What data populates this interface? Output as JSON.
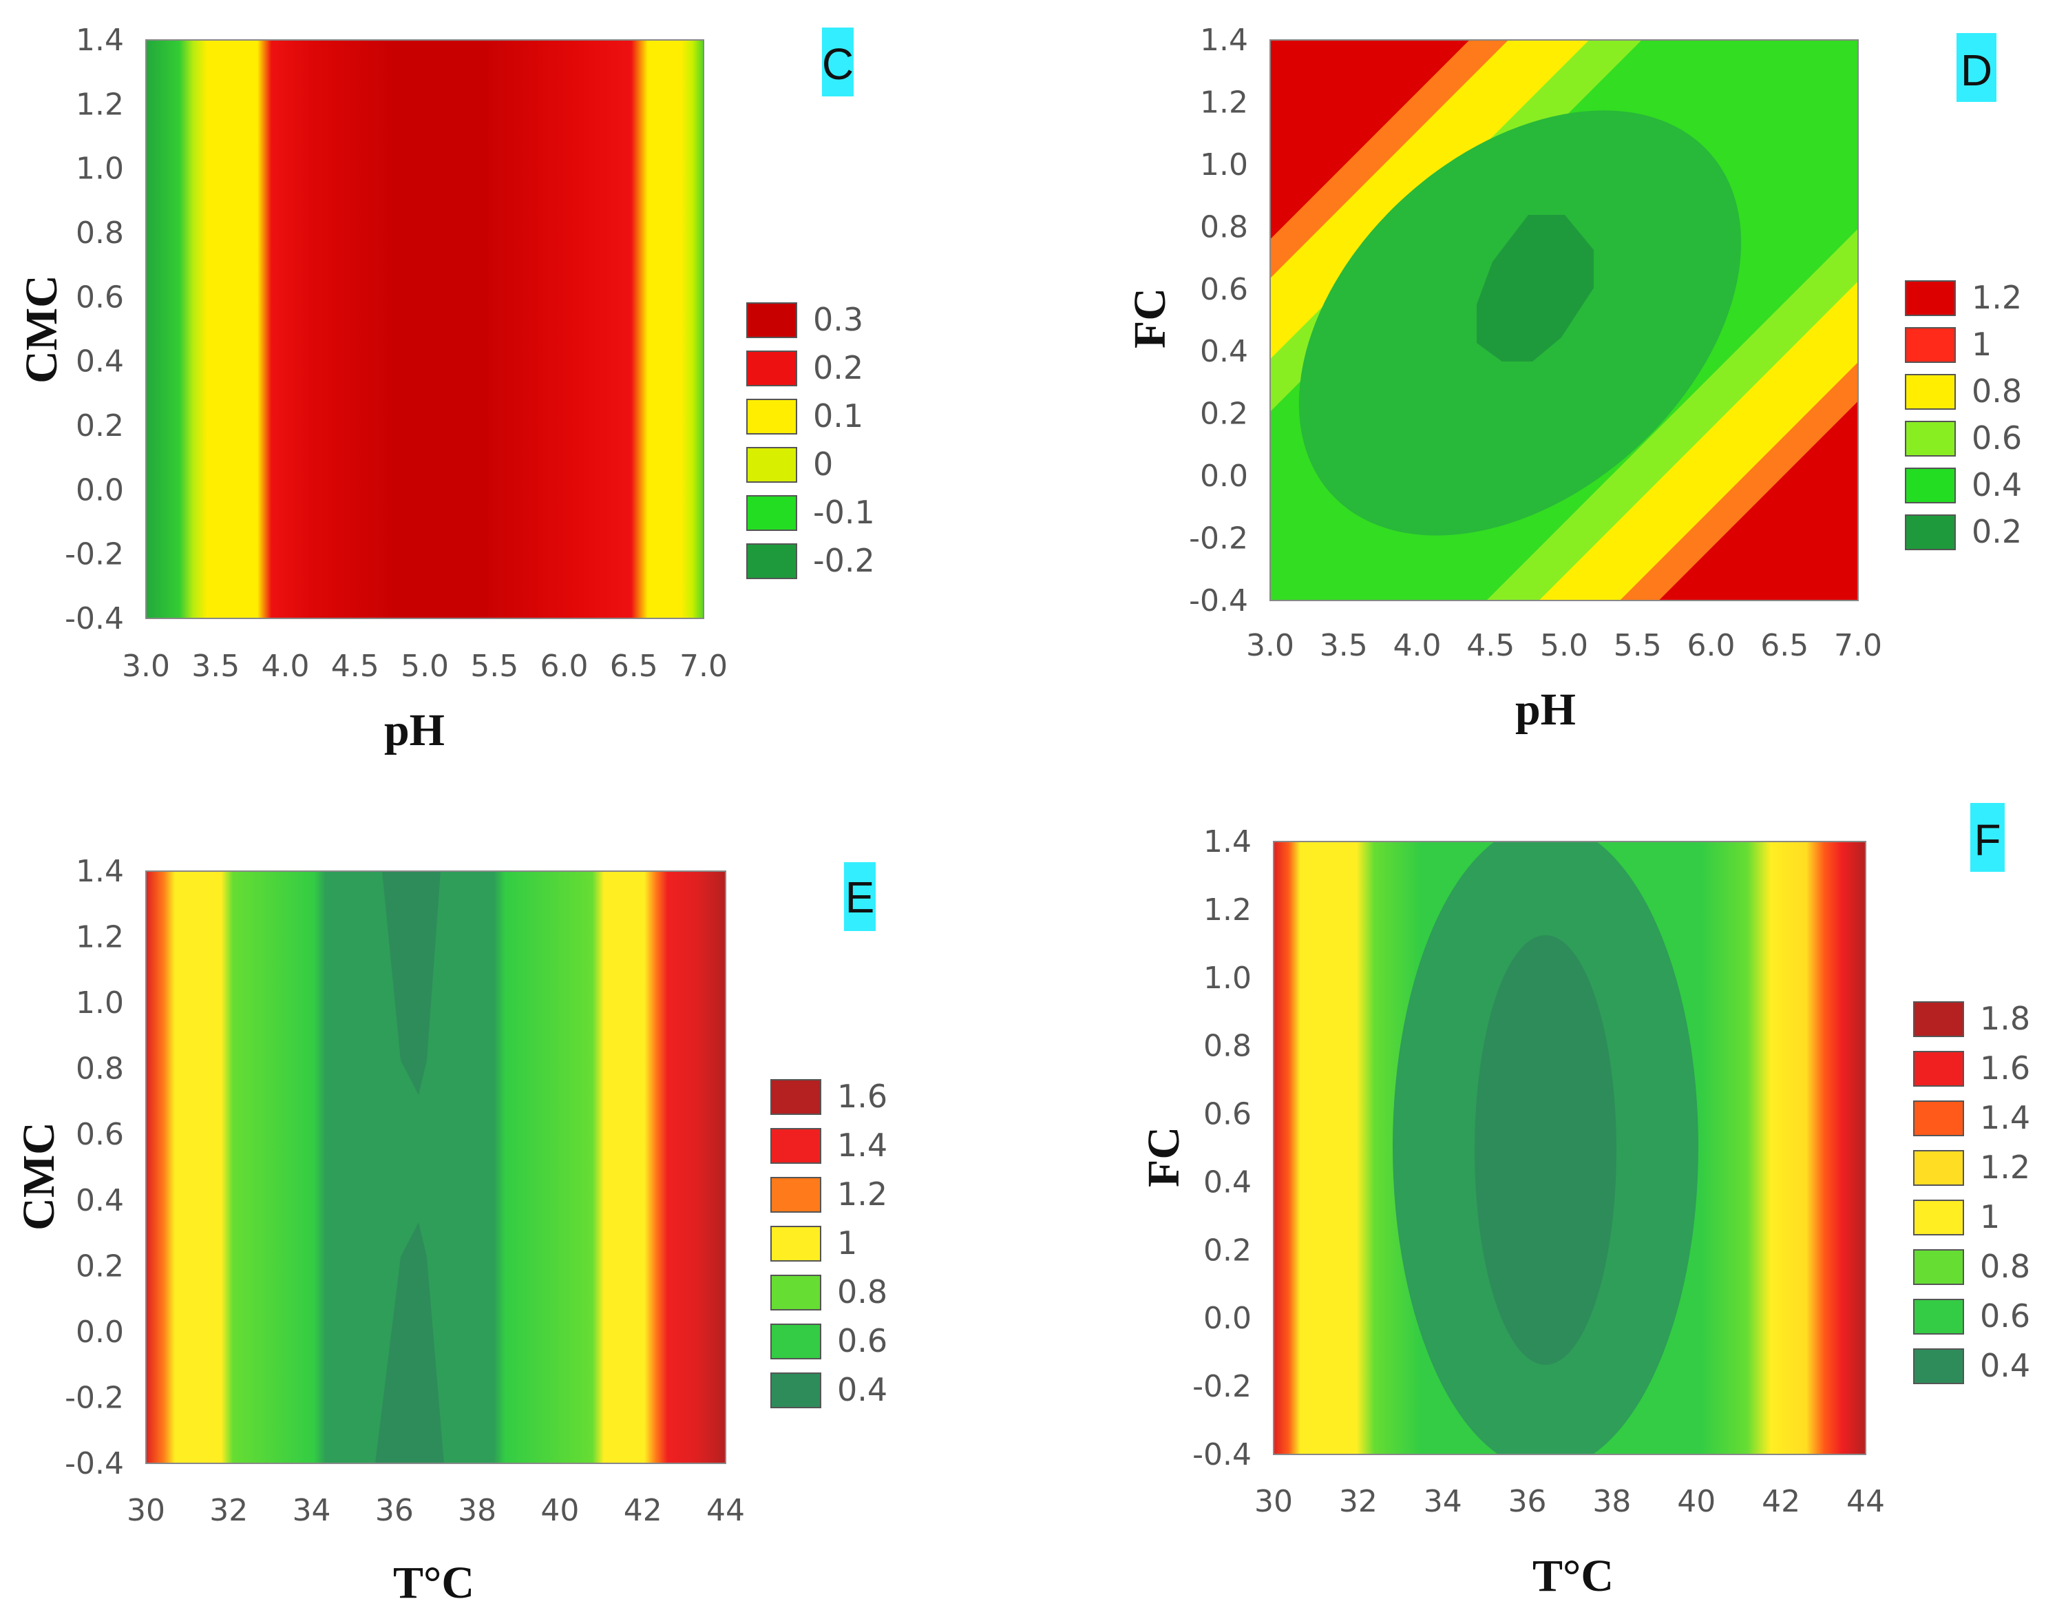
{
  "chart_data": [
    {
      "type": "heatmap",
      "panel_label": "C",
      "xlabel": "pH",
      "ylabel": "CMC",
      "xlim": [
        3.0,
        7.0
      ],
      "ylim": [
        -0.4,
        1.4
      ],
      "x_ticks": [
        "3.0",
        "3.5",
        "4.0",
        "4.5",
        "5.0",
        "5.5",
        "6.0",
        "6.5",
        "7.0"
      ],
      "y_ticks": [
        "1.4",
        "1.2",
        "1.0",
        "0.8",
        "0.6",
        "0.4",
        "0.2",
        "0.0",
        "-0.2",
        "-0.4"
      ],
      "legend": [
        {
          "label": "0.3",
          "color": "#c80000"
        },
        {
          "label": "0.2",
          "color": "#ee1111"
        },
        {
          "label": "0.1",
          "color": "#ffee00"
        },
        {
          "label": "0",
          "color": "#d8f000"
        },
        {
          "label": "-0.1",
          "color": "#22dd22"
        },
        {
          "label": "-0.2",
          "color": "#1e9a3c"
        }
      ]
    },
    {
      "type": "heatmap",
      "panel_label": "D",
      "xlabel": "pH",
      "ylabel": "FC",
      "xlim": [
        3.0,
        7.0
      ],
      "ylim": [
        -0.4,
        1.4
      ],
      "x_ticks": [
        "3.0",
        "3.5",
        "4.0",
        "4.5",
        "5.0",
        "5.5",
        "6.0",
        "6.5",
        "7.0"
      ],
      "y_ticks": [
        "1.4",
        "1.2",
        "1.0",
        "0.8",
        "0.6",
        "0.4",
        "0.2",
        "0.0",
        "-0.2",
        "-0.4"
      ],
      "legend": [
        {
          "label": "1.2",
          "color": "#dd0000"
        },
        {
          "label": "1",
          "color": "#ff2a1a"
        },
        {
          "label": "0.8",
          "color": "#ffee00"
        },
        {
          "label": "0.6",
          "color": "#88ee22"
        },
        {
          "label": "0.4",
          "color": "#22dd22"
        },
        {
          "label": "0.2",
          "color": "#1e9a3c"
        }
      ]
    },
    {
      "type": "heatmap",
      "panel_label": "E",
      "xlabel": "T°C",
      "ylabel": "CMC",
      "xlim": [
        30,
        44
      ],
      "ylim": [
        -0.4,
        1.4
      ],
      "x_ticks": [
        "30",
        "32",
        "34",
        "36",
        "38",
        "40",
        "42",
        "44"
      ],
      "y_ticks": [
        "1.4",
        "1.2",
        "1.0",
        "0.8",
        "0.6",
        "0.4",
        "0.2",
        "0.0",
        "-0.2",
        "-0.4"
      ],
      "legend": [
        {
          "label": "1.6",
          "color": "#b52020"
        },
        {
          "label": "1.4",
          "color": "#f02020"
        },
        {
          "label": "1.2",
          "color": "#ff7a1a"
        },
        {
          "label": "1",
          "color": "#ffee22"
        },
        {
          "label": "0.8",
          "color": "#66dd33"
        },
        {
          "label": "0.6",
          "color": "#33cc44"
        },
        {
          "label": "0.4",
          "color": "#2e8c5a"
        }
      ]
    },
    {
      "type": "heatmap",
      "panel_label": "F",
      "xlabel": "T°C",
      "ylabel": "FC",
      "xlim": [
        30,
        44
      ],
      "ylim": [
        -0.4,
        1.4
      ],
      "x_ticks": [
        "30",
        "32",
        "34",
        "36",
        "38",
        "40",
        "42",
        "44"
      ],
      "y_ticks": [
        "1.4",
        "1.2",
        "1.0",
        "0.8",
        "0.6",
        "0.4",
        "0.2",
        "0.0",
        "-0.2",
        "-0.4"
      ],
      "legend": [
        {
          "label": "1.8",
          "color": "#b52020"
        },
        {
          "label": "1.6",
          "color": "#f02020"
        },
        {
          "label": "1.4",
          "color": "#ff5a1a"
        },
        {
          "label": "1.2",
          "color": "#ffdd22"
        },
        {
          "label": "1",
          "color": "#ffee22"
        },
        {
          "label": "0.8",
          "color": "#66dd33"
        },
        {
          "label": "0.6",
          "color": "#33cc44"
        },
        {
          "label": "0.4",
          "color": "#2e8c5a"
        }
      ]
    }
  ]
}
